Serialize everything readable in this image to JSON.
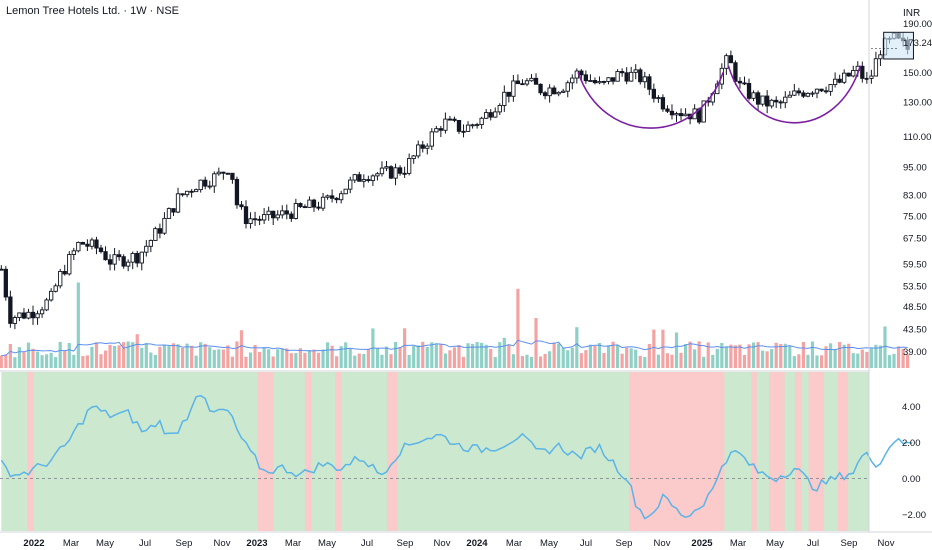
{
  "header": {
    "title": "Lemon Tree Hotels Ltd. · 1W · NSE",
    "currency": "INR"
  },
  "colors": {
    "up": "#26a69a",
    "down": "#ef5350",
    "vol_up": "#8fd0c6",
    "vol_down": "#f4a3a3",
    "candle": "#131722",
    "cup_arc": "#7b1fa2",
    "ma": "#5b8ff0",
    "osc_line": "#5ab4e8",
    "osc_green_bg": "#cce9cf",
    "osc_red_bg": "#fbcaca",
    "box_fill": "#cfe6f5",
    "box_stroke": "#131722"
  },
  "chart_data": [
    {
      "type": "candlestick",
      "title": "Lemon Tree Hotels Ltd. · 1W · NSE",
      "price_scale": "log",
      "ylim": [
        36,
        195
      ],
      "y_ticks": [
        190.0,
        173.24,
        150.0,
        130.0,
        110.0,
        95.0,
        83.0,
        75.0,
        67.5,
        59.5,
        53.5,
        48.5,
        43.5,
        39.0
      ],
      "last_price": 173.24,
      "x_ticks": [
        "2022",
        "Mar",
        "May",
        "Jul",
        "Sep",
        "Nov",
        "2023",
        "Mar",
        "May",
        "Jul",
        "Sep",
        "Nov",
        "2024",
        "Mar",
        "May",
        "Jul",
        "Sep",
        "Nov",
        "2025",
        "Mar",
        "May",
        "Jul",
        "Sep",
        "Nov"
      ],
      "x_range": [
        "2021-12",
        "2025-11"
      ],
      "close_path": [
        [
          "2021-12-01",
          58
        ],
        [
          "2021-12-15",
          46
        ],
        [
          "2022-01-15",
          47
        ],
        [
          "2022-02-15",
          50
        ],
        [
          "2022-03-01",
          56
        ],
        [
          "2022-04-01",
          66
        ],
        [
          "2022-05-01",
          64
        ],
        [
          "2022-05-20",
          60
        ],
        [
          "2022-07-01",
          62
        ],
        [
          "2022-08-01",
          70
        ],
        [
          "2022-09-01",
          82
        ],
        [
          "2022-10-01",
          88
        ],
        [
          "2022-11-01",
          91
        ],
        [
          "2022-11-20",
          96
        ],
        [
          "2022-12-01",
          78
        ],
        [
          "2022-12-15",
          74
        ],
        [
          "2023-01-15",
          74
        ],
        [
          "2023-02-15",
          76
        ],
        [
          "2023-03-15",
          78
        ],
        [
          "2023-04-15",
          80
        ],
        [
          "2023-05-15",
          86
        ],
        [
          "2023-06-15",
          92
        ],
        [
          "2023-07-15",
          92
        ],
        [
          "2023-08-15",
          94
        ],
        [
          "2023-09-15",
          106
        ],
        [
          "2023-10-15",
          118
        ],
        [
          "2023-11-15",
          114
        ],
        [
          "2023-12-15",
          120
        ],
        [
          "2024-01-15",
          134
        ],
        [
          "2024-02-15",
          144
        ],
        [
          "2024-03-15",
          138
        ],
        [
          "2024-04-15",
          140
        ],
        [
          "2024-05-10",
          150
        ],
        [
          "2024-06-15",
          140
        ],
        [
          "2024-07-15",
          150
        ],
        [
          "2024-08-15",
          146
        ],
        [
          "2024-09-15",
          130
        ],
        [
          "2024-10-15",
          124
        ],
        [
          "2024-11-15",
          122
        ],
        [
          "2024-12-15",
          150
        ],
        [
          "2024-12-28",
          160
        ],
        [
          "2025-01-15",
          140
        ],
        [
          "2025-02-15",
          130
        ],
        [
          "2025-03-15",
          128
        ],
        [
          "2025-04-15",
          136
        ],
        [
          "2025-05-15",
          140
        ],
        [
          "2025-06-15",
          142
        ],
        [
          "2025-07-15",
          152
        ],
        [
          "2025-08-01",
          142
        ],
        [
          "2025-08-20",
          168
        ],
        [
          "2025-09-10",
          176
        ],
        [
          "2025-10-01",
          168
        ]
      ],
      "volume_avg_line": true,
      "annotations": [
        {
          "kind": "cup-arc",
          "from": "2024-05-10",
          "to": "2024-12-20",
          "rim": 150,
          "bottom": 115
        },
        {
          "kind": "cup-arc",
          "from": "2024-12-28",
          "to": "2025-07-20",
          "rim": 155,
          "bottom": 118
        },
        {
          "kind": "consolidation-box",
          "from": "2025-08-25",
          "to": "2025-10-10",
          "low": 160,
          "high": 182
        }
      ]
    },
    {
      "type": "line",
      "ylim": [
        -2.9,
        5.9
      ],
      "y_ticks": [
        4.0,
        2.0,
        0.0,
        -2.0
      ],
      "y_tick_labels": [
        "4.00",
        "2.00",
        "0.00",
        "−2.00"
      ],
      "zero_line": 0,
      "values": [
        [
          "2021-12-01",
          0.8
        ],
        [
          "2021-12-20",
          0.2
        ],
        [
          "2022-01-15",
          0.4
        ],
        [
          "2022-02-15",
          1.0
        ],
        [
          "2022-03-10",
          1.8
        ],
        [
          "2022-04-01",
          3.0
        ],
        [
          "2022-04-20",
          4.0
        ],
        [
          "2022-05-15",
          3.5
        ],
        [
          "2022-06-15",
          3.6
        ],
        [
          "2022-07-10",
          2.5
        ],
        [
          "2022-08-01",
          3.2
        ],
        [
          "2022-08-20",
          2.2
        ],
        [
          "2022-09-15",
          3.5
        ],
        [
          "2022-10-01",
          5.0
        ],
        [
          "2022-10-20",
          3.6
        ],
        [
          "2022-11-15",
          3.8
        ],
        [
          "2022-12-10",
          2.0
        ],
        [
          "2023-01-10",
          0.4
        ],
        [
          "2023-02-10",
          0.6
        ],
        [
          "2023-03-10",
          0.2
        ],
        [
          "2023-04-10",
          0.8
        ],
        [
          "2023-05-10",
          0.6
        ],
        [
          "2023-06-10",
          1.2
        ],
        [
          "2023-07-10",
          0.2
        ],
        [
          "2023-08-10",
          1.6
        ],
        [
          "2023-09-10",
          2.2
        ],
        [
          "2023-10-10",
          2.4
        ],
        [
          "2023-11-10",
          1.8
        ],
        [
          "2023-12-10",
          1.6
        ],
        [
          "2024-01-10",
          1.8
        ],
        [
          "2024-02-10",
          2.4
        ],
        [
          "2024-03-10",
          1.4
        ],
        [
          "2024-04-10",
          1.8
        ],
        [
          "2024-05-10",
          1.2
        ],
        [
          "2024-06-10",
          1.8
        ],
        [
          "2024-07-10",
          0.6
        ],
        [
          "2024-07-25",
          0.0
        ],
        [
          "2024-08-10",
          -1.6
        ],
        [
          "2024-08-25",
          -2.2
        ],
        [
          "2024-09-20",
          -1.0
        ],
        [
          "2024-10-10",
          -1.8
        ],
        [
          "2024-10-25",
          -2.1
        ],
        [
          "2024-11-15",
          -1.5
        ],
        [
          "2024-12-05",
          -0.6
        ],
        [
          "2024-12-20",
          1.0
        ],
        [
          "2025-01-10",
          1.5
        ],
        [
          "2025-02-10",
          0.4
        ],
        [
          "2025-03-10",
          0.0
        ],
        [
          "2025-04-10",
          0.6
        ],
        [
          "2025-05-10",
          -0.5
        ],
        [
          "2025-06-10",
          0.0
        ],
        [
          "2025-07-10",
          0.4
        ],
        [
          "2025-07-25",
          1.4
        ],
        [
          "2025-08-15",
          0.8
        ],
        [
          "2025-09-01",
          1.6
        ],
        [
          "2025-09-15",
          2.4
        ],
        [
          "2025-10-01",
          1.8
        ],
        [
          "2025-10-08",
          2.0
        ]
      ],
      "background_regions": [
        {
          "from": "2021-12-01",
          "to": "2025-10-10",
          "state": "positive"
        },
        {
          "from": "2022-01-10",
          "to": "2022-01-20",
          "state": "negative"
        },
        {
          "from": "2023-01-01",
          "to": "2023-01-25",
          "state": "negative"
        },
        {
          "from": "2023-03-15",
          "to": "2023-03-25",
          "state": "negative"
        },
        {
          "from": "2023-05-01",
          "to": "2023-05-10",
          "state": "negative"
        },
        {
          "from": "2023-07-20",
          "to": "2023-08-05",
          "state": "negative"
        },
        {
          "from": "2024-07-28",
          "to": "2024-12-22",
          "state": "negative"
        },
        {
          "from": "2025-02-01",
          "to": "2025-02-10",
          "state": "negative"
        },
        {
          "from": "2025-03-01",
          "to": "2025-03-25",
          "state": "negative"
        },
        {
          "from": "2025-04-10",
          "to": "2025-04-20",
          "state": "negative"
        },
        {
          "from": "2025-05-01",
          "to": "2025-05-25",
          "state": "negative"
        },
        {
          "from": "2025-06-15",
          "to": "2025-07-01",
          "state": "negative"
        }
      ]
    }
  ]
}
